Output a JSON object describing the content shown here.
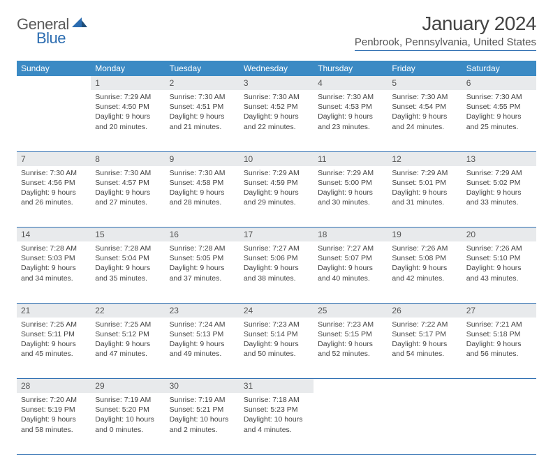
{
  "logo": {
    "text1": "General",
    "text2": "Blue"
  },
  "title": "January 2024",
  "location": "Penbrook, Pennsylvania, United States",
  "colors": {
    "header_bg": "#3b8ac4",
    "header_fg": "#ffffff",
    "rule": "#2b6cb0",
    "daynum_bg": "#e8eaec",
    "text": "#444444",
    "logo_gray": "#5a5a5a",
    "logo_blue": "#2b6cb0"
  },
  "layout": {
    "cols": 7,
    "rows": 5,
    "day_font_size": 12,
    "cell_font_size": 10.5
  },
  "weekdays": [
    "Sunday",
    "Monday",
    "Tuesday",
    "Wednesday",
    "Thursday",
    "Friday",
    "Saturday"
  ],
  "first_weekday_offset": 1,
  "days": [
    {
      "n": 1,
      "sr": "7:29 AM",
      "ss": "4:50 PM",
      "dl": "9 hours and 20 minutes."
    },
    {
      "n": 2,
      "sr": "7:30 AM",
      "ss": "4:51 PM",
      "dl": "9 hours and 21 minutes."
    },
    {
      "n": 3,
      "sr": "7:30 AM",
      "ss": "4:52 PM",
      "dl": "9 hours and 22 minutes."
    },
    {
      "n": 4,
      "sr": "7:30 AM",
      "ss": "4:53 PM",
      "dl": "9 hours and 23 minutes."
    },
    {
      "n": 5,
      "sr": "7:30 AM",
      "ss": "4:54 PM",
      "dl": "9 hours and 24 minutes."
    },
    {
      "n": 6,
      "sr": "7:30 AM",
      "ss": "4:55 PM",
      "dl": "9 hours and 25 minutes."
    },
    {
      "n": 7,
      "sr": "7:30 AM",
      "ss": "4:56 PM",
      "dl": "9 hours and 26 minutes."
    },
    {
      "n": 8,
      "sr": "7:30 AM",
      "ss": "4:57 PM",
      "dl": "9 hours and 27 minutes."
    },
    {
      "n": 9,
      "sr": "7:30 AM",
      "ss": "4:58 PM",
      "dl": "9 hours and 28 minutes."
    },
    {
      "n": 10,
      "sr": "7:29 AM",
      "ss": "4:59 PM",
      "dl": "9 hours and 29 minutes."
    },
    {
      "n": 11,
      "sr": "7:29 AM",
      "ss": "5:00 PM",
      "dl": "9 hours and 30 minutes."
    },
    {
      "n": 12,
      "sr": "7:29 AM",
      "ss": "5:01 PM",
      "dl": "9 hours and 31 minutes."
    },
    {
      "n": 13,
      "sr": "7:29 AM",
      "ss": "5:02 PM",
      "dl": "9 hours and 33 minutes."
    },
    {
      "n": 14,
      "sr": "7:28 AM",
      "ss": "5:03 PM",
      "dl": "9 hours and 34 minutes."
    },
    {
      "n": 15,
      "sr": "7:28 AM",
      "ss": "5:04 PM",
      "dl": "9 hours and 35 minutes."
    },
    {
      "n": 16,
      "sr": "7:28 AM",
      "ss": "5:05 PM",
      "dl": "9 hours and 37 minutes."
    },
    {
      "n": 17,
      "sr": "7:27 AM",
      "ss": "5:06 PM",
      "dl": "9 hours and 38 minutes."
    },
    {
      "n": 18,
      "sr": "7:27 AM",
      "ss": "5:07 PM",
      "dl": "9 hours and 40 minutes."
    },
    {
      "n": 19,
      "sr": "7:26 AM",
      "ss": "5:08 PM",
      "dl": "9 hours and 42 minutes."
    },
    {
      "n": 20,
      "sr": "7:26 AM",
      "ss": "5:10 PM",
      "dl": "9 hours and 43 minutes."
    },
    {
      "n": 21,
      "sr": "7:25 AM",
      "ss": "5:11 PM",
      "dl": "9 hours and 45 minutes."
    },
    {
      "n": 22,
      "sr": "7:25 AM",
      "ss": "5:12 PM",
      "dl": "9 hours and 47 minutes."
    },
    {
      "n": 23,
      "sr": "7:24 AM",
      "ss": "5:13 PM",
      "dl": "9 hours and 49 minutes."
    },
    {
      "n": 24,
      "sr": "7:23 AM",
      "ss": "5:14 PM",
      "dl": "9 hours and 50 minutes."
    },
    {
      "n": 25,
      "sr": "7:23 AM",
      "ss": "5:15 PM",
      "dl": "9 hours and 52 minutes."
    },
    {
      "n": 26,
      "sr": "7:22 AM",
      "ss": "5:17 PM",
      "dl": "9 hours and 54 minutes."
    },
    {
      "n": 27,
      "sr": "7:21 AM",
      "ss": "5:18 PM",
      "dl": "9 hours and 56 minutes."
    },
    {
      "n": 28,
      "sr": "7:20 AM",
      "ss": "5:19 PM",
      "dl": "9 hours and 58 minutes."
    },
    {
      "n": 29,
      "sr": "7:19 AM",
      "ss": "5:20 PM",
      "dl": "10 hours and 0 minutes."
    },
    {
      "n": 30,
      "sr": "7:19 AM",
      "ss": "5:21 PM",
      "dl": "10 hours and 2 minutes."
    },
    {
      "n": 31,
      "sr": "7:18 AM",
      "ss": "5:23 PM",
      "dl": "10 hours and 4 minutes."
    }
  ],
  "labels": {
    "sunrise": "Sunrise:",
    "sunset": "Sunset:",
    "daylight": "Daylight:"
  }
}
